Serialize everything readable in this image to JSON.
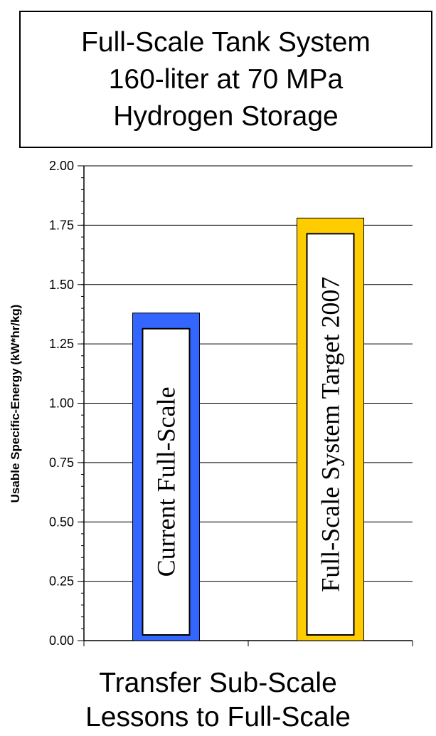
{
  "title_lines": [
    "Full-Scale Tank System",
    "160-liter at 70 MPa",
    "Hydrogen Storage"
  ],
  "footer_lines": [
    "Transfer Sub-Scale",
    "Lessons to Full-Scale"
  ],
  "chart_data": {
    "type": "bar",
    "ylabel": "Usable Specific-Energy (kW*hr/kg)",
    "xlabel": "",
    "ylim": [
      0,
      2.0
    ],
    "yticks": [
      "0.00",
      "0.25",
      "0.50",
      "0.75",
      "1.00",
      "1.25",
      "1.50",
      "1.75",
      "2.00"
    ],
    "grid": true,
    "categories": [
      "Current Full-Scale",
      "Full-Scale System Target 2007"
    ],
    "values": [
      1.38,
      1.78
    ],
    "colors": [
      "#3366ff",
      "#ffcc00"
    ]
  }
}
